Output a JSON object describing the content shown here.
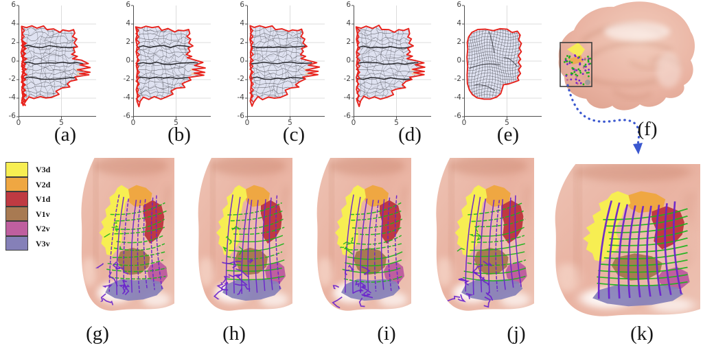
{
  "figure_labels": {
    "a": "(a)",
    "b": "(b)",
    "c": "(c)",
    "d": "(d)",
    "e": "(e)",
    "f": "(f)",
    "g": "(g)",
    "h": "(h)",
    "i": "(i)",
    "j": "(j)",
    "k": "(k)"
  },
  "axes": {
    "x_ticks": [
      "0",
      "5"
    ],
    "x_tick_values": [
      0,
      5
    ],
    "y_ticks": [
      "6",
      "4",
      "2",
      "0",
      "-2",
      "-4",
      "-6"
    ],
    "y_tick_values": [
      6,
      4,
      2,
      0,
      -2,
      -4,
      -6
    ],
    "x_range": [
      0,
      9
    ],
    "y_range": [
      -6,
      6
    ],
    "h_gridlines": [
      4,
      2,
      0,
      -2,
      -4
    ],
    "v_gridlines": [
      5
    ]
  },
  "chart_data": {
    "type": "table",
    "title": "",
    "description": "Five flattened visual-cortex surface meshes (a-e) plotted in the same axes; black wireframe with red boundary",
    "panels": [
      "(a)",
      "(b)",
      "(c)",
      "(d)",
      "(e)"
    ],
    "x_range": [
      0,
      9
    ],
    "y_range": [
      -6,
      6
    ],
    "x_tick_labels": [
      "0",
      "5"
    ],
    "y_tick_labels": [
      "6",
      "4",
      "2",
      "0",
      "-2",
      "-4",
      "-6"
    ]
  },
  "legend": {
    "items": [
      {
        "label": "V3d",
        "color": "#f7ee52"
      },
      {
        "label": "V2d",
        "color": "#efa742"
      },
      {
        "label": "V1d",
        "color": "#bf3a42"
      },
      {
        "label": "V1v",
        "color": "#a87a52"
      },
      {
        "label": "V2v",
        "color": "#bf5f9f"
      },
      {
        "label": "V3v",
        "color": "#8580b8"
      }
    ]
  },
  "top_row": {
    "plots": [
      {
        "id": "a",
        "seed": 11,
        "kind": "wire"
      },
      {
        "id": "b",
        "seed": 23,
        "kind": "wire"
      },
      {
        "id": "c",
        "seed": 37,
        "kind": "wire"
      },
      {
        "id": "d",
        "seed": 51,
        "kind": "wire"
      },
      {
        "id": "e",
        "seed": 67,
        "kind": "fine"
      }
    ]
  },
  "bottom_row": {
    "panels": [
      {
        "id": "g",
        "seed": 101,
        "kind": "noisy"
      },
      {
        "id": "h",
        "seed": 202,
        "kind": "noisy"
      },
      {
        "id": "i",
        "seed": 303,
        "kind": "noisy"
      },
      {
        "id": "j",
        "seed": 404,
        "kind": "noisy"
      },
      {
        "id": "k",
        "seed": 505,
        "kind": "clean"
      }
    ]
  },
  "colors": {
    "axis": "#4d4d4d",
    "tick_text": "#404040",
    "grid": "#dcdcdc",
    "mesh_fill": "#dfe2f1",
    "mesh_line": "#15151a",
    "boundary_red": "#e8221b",
    "tan_patch": "#f1d0a5",
    "brain_base": "#e9b2a1",
    "brain_mid": "#edc2b3",
    "brain_dark": "#c9836c",
    "brain_light": "#f8ded2",
    "grid_green": "#1cb31c",
    "grid_purple": "#6a22cc",
    "arrow_blue": "#3a57cf",
    "box_stroke": "#3c3c3c"
  }
}
